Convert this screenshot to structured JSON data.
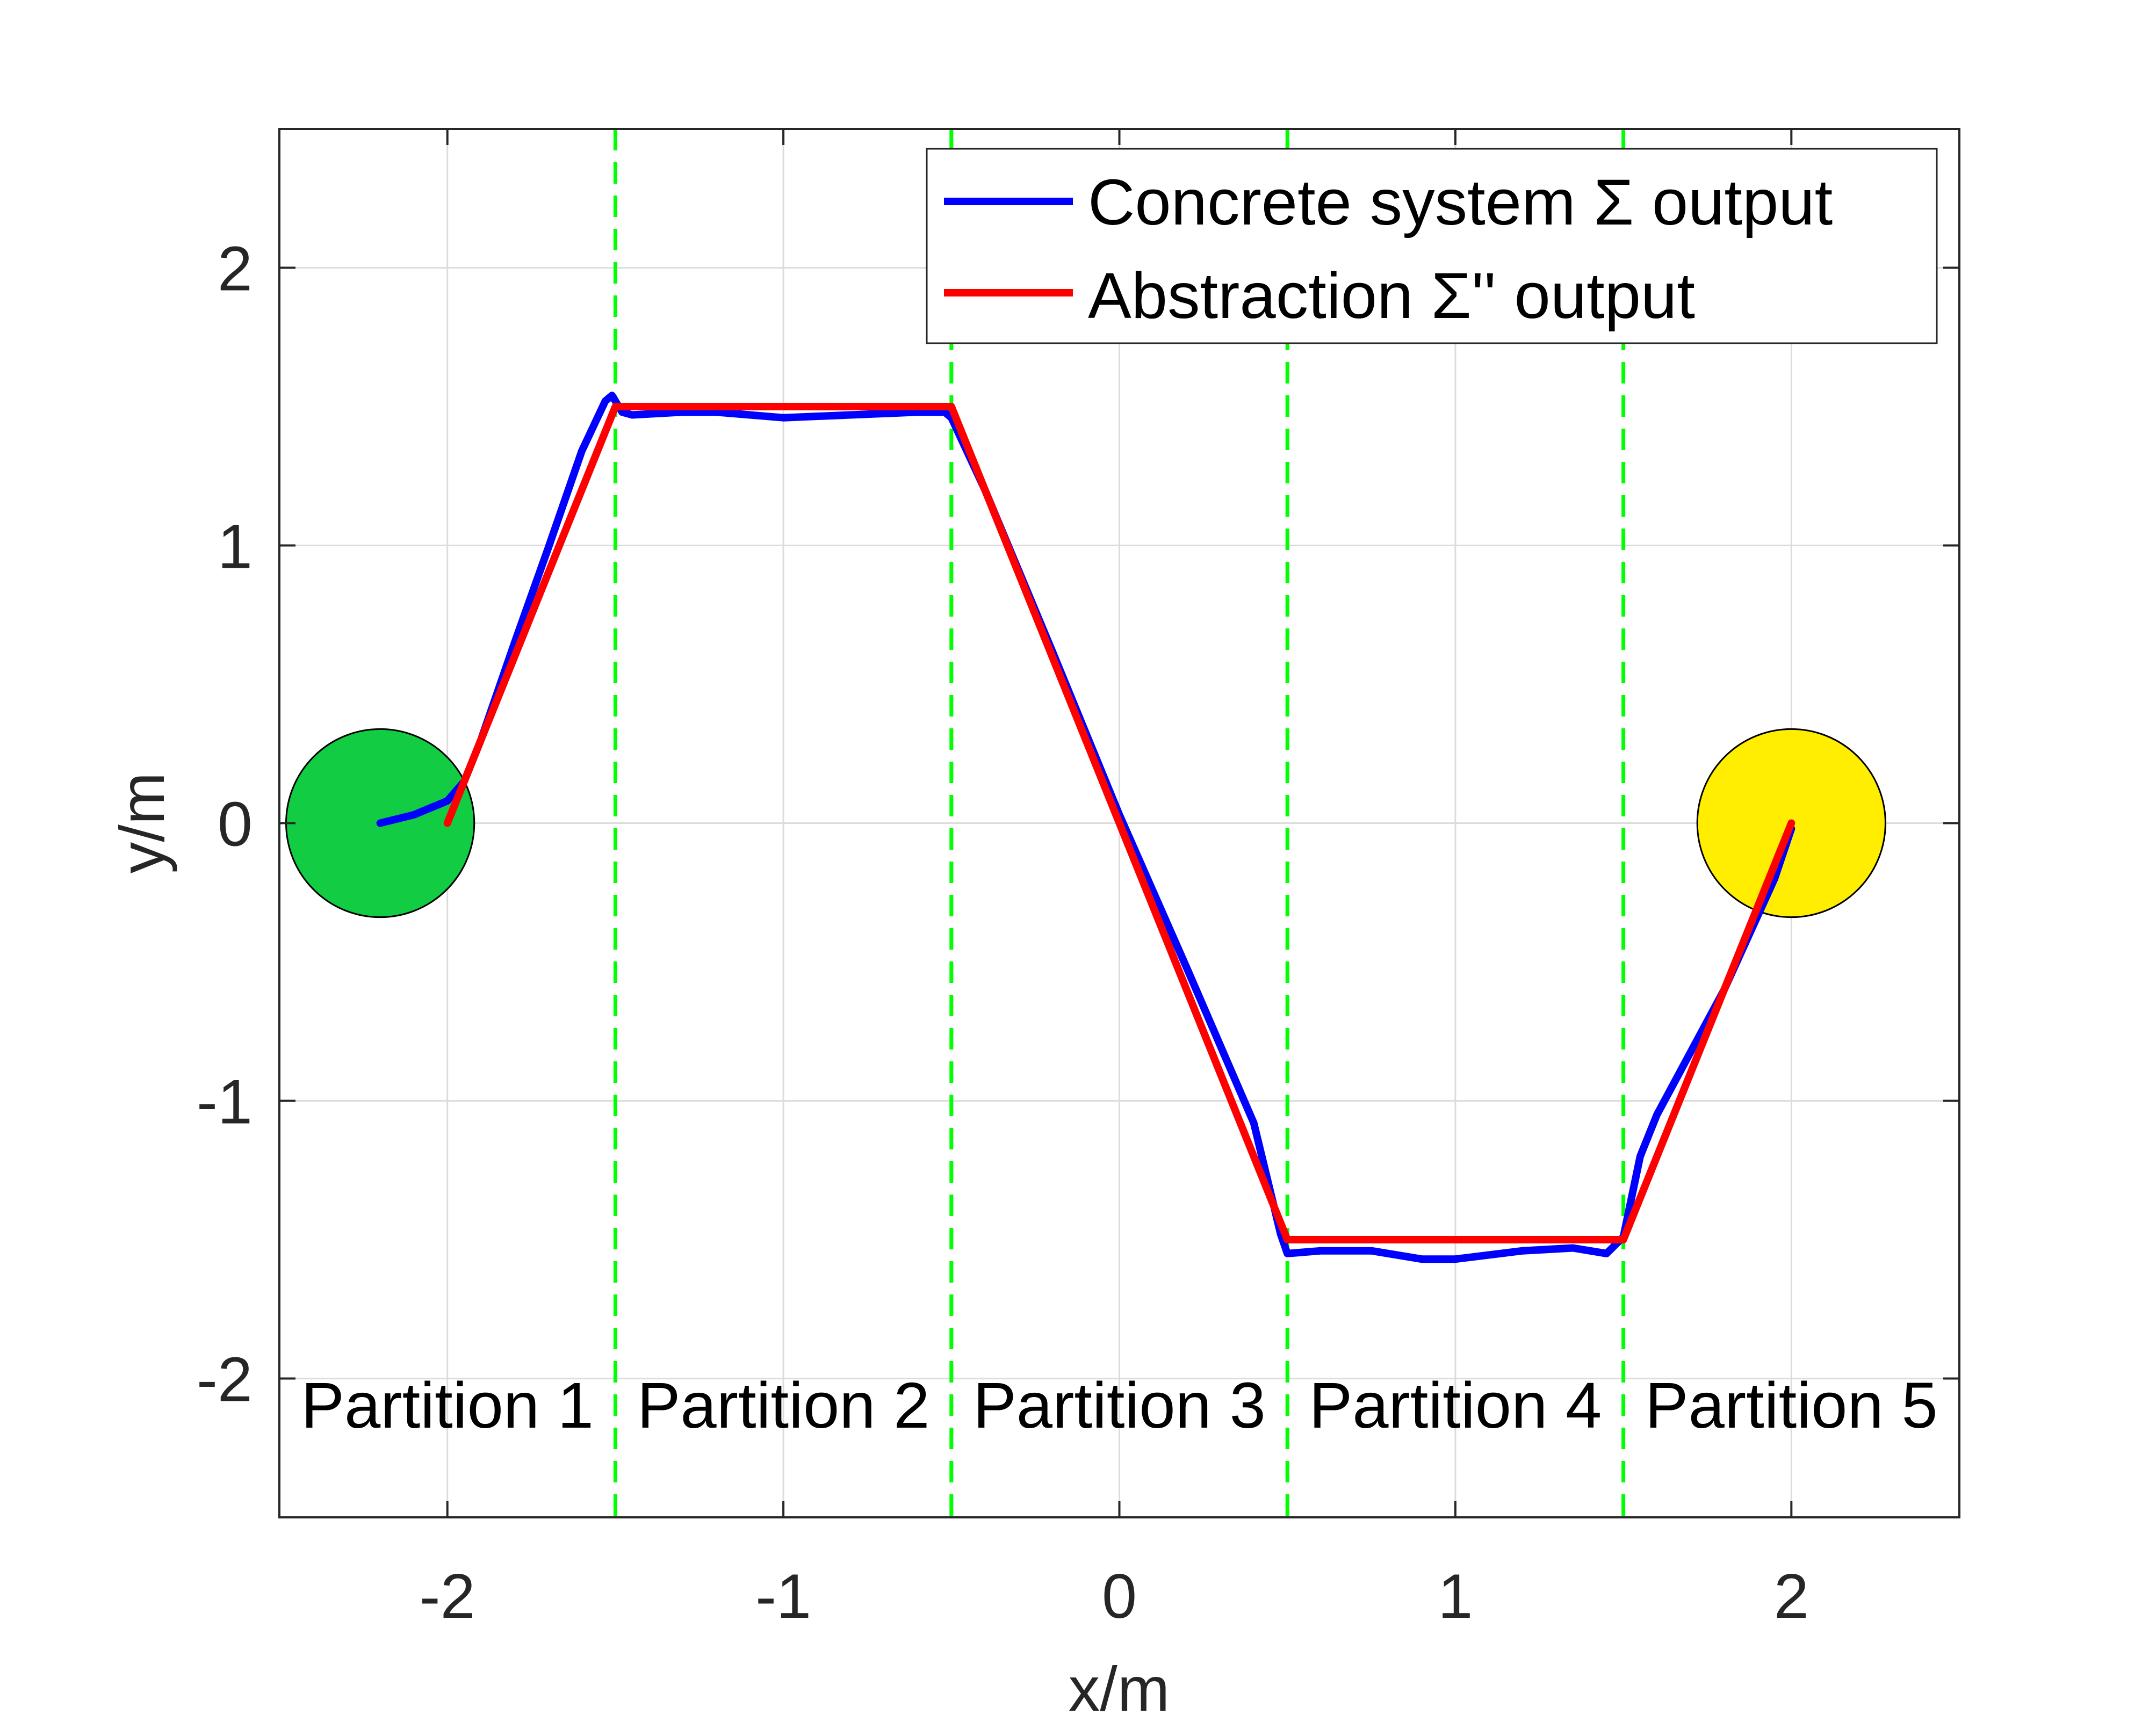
{
  "chart_data": {
    "type": "line",
    "xlabel": "x/m",
    "ylabel": "y/m",
    "xlim": [
      -2.5,
      2.5
    ],
    "ylim": [
      -2.5,
      2.5
    ],
    "xticks": [
      -2,
      -1,
      0,
      1,
      2
    ],
    "yticks": [
      -2,
      -1,
      0,
      1,
      2
    ],
    "grid": true,
    "legend_position": "top-right",
    "series": [
      {
        "name": "Concrete system Σ output",
        "color": "#0000ff",
        "x": [
          -2.2,
          -2.1,
          -2.0,
          -1.95,
          -1.9,
          -1.8,
          -1.7,
          -1.6,
          -1.53,
          -1.51,
          -1.48,
          -1.45,
          -1.3,
          -1.2,
          -1.0,
          -0.8,
          -0.6,
          -0.52,
          -0.5,
          -0.4,
          -0.2,
          0.0,
          0.2,
          0.4,
          0.48,
          0.5,
          0.6,
          0.75,
          0.9,
          1.0,
          1.2,
          1.35,
          1.45,
          1.5,
          1.55,
          1.6,
          1.8,
          1.95,
          2.0
        ],
        "y": [
          0.0,
          0.03,
          0.08,
          0.15,
          0.3,
          0.65,
          0.99,
          1.34,
          1.52,
          1.54,
          1.48,
          1.47,
          1.48,
          1.48,
          1.46,
          1.47,
          1.48,
          1.48,
          1.46,
          1.2,
          0.62,
          0.03,
          -0.52,
          -1.08,
          -1.48,
          -1.55,
          -1.54,
          -1.54,
          -1.57,
          -1.57,
          -1.54,
          -1.53,
          -1.55,
          -1.49,
          -1.2,
          -1.05,
          -0.6,
          -0.2,
          -0.02
        ]
      },
      {
        "name": "Abstraction Σ'' output",
        "color": "#ff0000",
        "x": [
          -2.0,
          -1.5,
          -0.5,
          0.5,
          1.5,
          2.0
        ],
        "y": [
          0.0,
          1.5,
          1.5,
          -1.5,
          -1.5,
          0.0
        ]
      }
    ],
    "partition_boundaries": [
      -1.5,
      -0.5,
      0.5,
      1.5
    ],
    "partition_boundary_color": "#00ff00",
    "partitions": [
      {
        "label": "Partition 1",
        "x_center": -2.0
      },
      {
        "label": "Partition 2",
        "x_center": -1.0
      },
      {
        "label": "Partition 3",
        "x_center": 0.0
      },
      {
        "label": "Partition 4",
        "x_center": 1.0
      },
      {
        "label": "Partition 5",
        "x_center": 2.0
      }
    ],
    "partition_label_y": -2.1,
    "start_region": {
      "x": -2.2,
      "y": 0.0,
      "r": 0.28,
      "color": "#12cc44"
    },
    "goal_region": {
      "x": 2.0,
      "y": 0.0,
      "r": 0.28,
      "color": "#ffee00"
    }
  }
}
